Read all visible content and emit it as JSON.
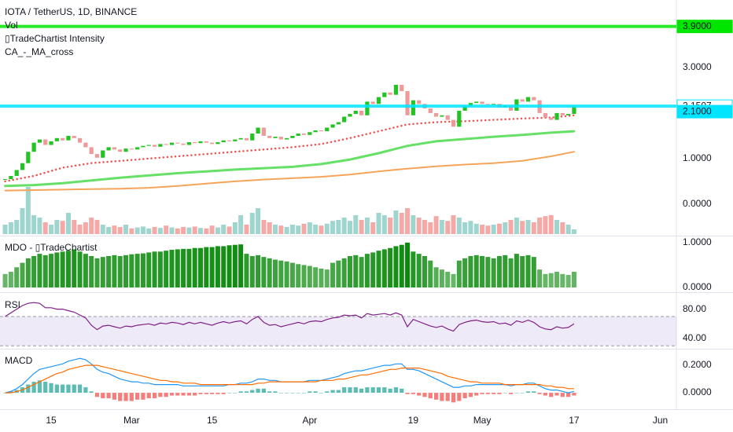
{
  "chart_data": [
    {
      "type": "candlestick",
      "title": "IOTA / TetherUS, 1D, BINANCE",
      "legend": [
        "Vol",
        "▯TradeChartist Intensity",
        "CA_-_MA_cross"
      ],
      "up_color": "#22c322",
      "down_color": "#ef9a9a",
      "closes": [
        0.55,
        0.62,
        0.75,
        0.9,
        1.15,
        1.35,
        1.42,
        1.3,
        1.38,
        1.45,
        1.4,
        1.5,
        1.45,
        1.35,
        1.25,
        1.1,
        1.02,
        1.18,
        1.25,
        1.2,
        1.15,
        1.22,
        1.2,
        1.25,
        1.28,
        1.3,
        1.26,
        1.32,
        1.3,
        1.35,
        1.33,
        1.3,
        1.36,
        1.34,
        1.38,
        1.35,
        1.32,
        1.36,
        1.4,
        1.38,
        1.42,
        1.45,
        1.4,
        1.55,
        1.68,
        1.5,
        1.45,
        1.48,
        1.42,
        1.45,
        1.5,
        1.55,
        1.52,
        1.58,
        1.62,
        1.6,
        1.68,
        1.75,
        1.8,
        1.92,
        1.98,
        2.05,
        1.95,
        2.25,
        2.2,
        2.35,
        2.45,
        2.4,
        2.62,
        2.48,
        1.95,
        2.28,
        2.2,
        2.1,
        2.0,
        1.92,
        1.95,
        1.85,
        1.7,
        2.05,
        2.15,
        2.22,
        2.25,
        2.2,
        2.18,
        2.2,
        2.12,
        2.16,
        2.05,
        2.3,
        2.25,
        2.35,
        2.28,
        2.0,
        1.9,
        1.85,
        2.0,
        1.95,
        1.98,
        2.15
      ],
      "lines": [
        {
          "color": "#66e066",
          "width": 3,
          "x": [
            0,
            5,
            10,
            15,
            20,
            25,
            30,
            35,
            40,
            45,
            50,
            55,
            60,
            65,
            70,
            75,
            80,
            85,
            90,
            95,
            99
          ],
          "values": [
            0.4,
            0.42,
            0.46,
            0.52,
            0.58,
            0.63,
            0.68,
            0.72,
            0.76,
            0.79,
            0.82,
            0.88,
            0.98,
            1.12,
            1.28,
            1.38,
            1.43,
            1.48,
            1.52,
            1.57,
            1.6
          ]
        },
        {
          "color": "#f5a55a",
          "width": 2,
          "x": [
            0,
            5,
            10,
            15,
            20,
            25,
            30,
            35,
            40,
            45,
            50,
            55,
            60,
            65,
            70,
            75,
            80,
            85,
            90,
            95,
            99
          ],
          "values": [
            0.3,
            0.31,
            0.32,
            0.33,
            0.34,
            0.36,
            0.4,
            0.45,
            0.5,
            0.54,
            0.57,
            0.6,
            0.65,
            0.72,
            0.78,
            0.83,
            0.87,
            0.9,
            0.95,
            1.05,
            1.15
          ]
        },
        {
          "color": "#ef5350",
          "width": 2.5,
          "dotted": true,
          "x": [
            0,
            5,
            10,
            15,
            20,
            25,
            30,
            35,
            40,
            45,
            50,
            55,
            60,
            65,
            70,
            75,
            80,
            85,
            90,
            95,
            99
          ],
          "values": [
            0.5,
            0.62,
            0.8,
            0.9,
            0.95,
            1.0,
            1.05,
            1.1,
            1.15,
            1.2,
            1.25,
            1.32,
            1.45,
            1.6,
            1.75,
            1.8,
            1.82,
            1.85,
            1.88,
            1.9,
            1.95
          ]
        }
      ],
      "levels": [
        {
          "value": 3.9,
          "label": "3.9000",
          "color": "#00e600",
          "line": true
        },
        {
          "value": 2.1507,
          "color": "#00e5ff",
          "line": true
        },
        {
          "value": 2.1,
          "label": "2.1000",
          "color": "#00e5ff",
          "line": false
        }
      ],
      "ylim": [
        -0.69,
        4.48
      ],
      "yticks": [
        {
          "value": 0,
          "label": "0.0000"
        },
        {
          "value": 1,
          "label": "1.0000"
        },
        {
          "value": 3,
          "label": "3.0000"
        }
      ]
    },
    {
      "type": "bar",
      "role": "volume",
      "up_color": "#9fd5cf",
      "down_color": "#f5a9a7",
      "ylim": [
        0,
        100
      ],
      "values": [
        20,
        25,
        30,
        55,
        100,
        40,
        35,
        25,
        20,
        30,
        28,
        45,
        30,
        20,
        25,
        35,
        30,
        20,
        15,
        18,
        15,
        20,
        12,
        14,
        16,
        12,
        15,
        13,
        18,
        14,
        12,
        15,
        14,
        16,
        13,
        12,
        18,
        14,
        20,
        16,
        25,
        40,
        20,
        45,
        55,
        30,
        25,
        20,
        18,
        15,
        20,
        18,
        22,
        25,
        20,
        18,
        22,
        28,
        30,
        35,
        28,
        40,
        30,
        35,
        25,
        45,
        40,
        35,
        50,
        45,
        55,
        40,
        35,
        30,
        25,
        38,
        30,
        28,
        40,
        35,
        25,
        28,
        22,
        20,
        18,
        20,
        22,
        25,
        30,
        35,
        28,
        30,
        25,
        35,
        38,
        40,
        30,
        25,
        20,
        10
      ]
    },
    {
      "type": "bar",
      "title": "MDO - ▯TradeChartist",
      "color": "#0a8a0a",
      "ylim": [
        -0.07,
        1.12
      ],
      "yticks": [
        {
          "value": 1,
          "label": "1.0000"
        },
        {
          "value": 0,
          "label": "0.0000"
        }
      ],
      "values": [
        0.3,
        0.35,
        0.45,
        0.55,
        0.65,
        0.7,
        0.75,
        0.72,
        0.75,
        0.78,
        0.8,
        0.82,
        0.85,
        0.8,
        0.75,
        0.7,
        0.65,
        0.68,
        0.7,
        0.72,
        0.7,
        0.72,
        0.74,
        0.75,
        0.76,
        0.78,
        0.8,
        0.8,
        0.82,
        0.84,
        0.85,
        0.86,
        0.86,
        0.88,
        0.88,
        0.9,
        0.9,
        0.92,
        0.92,
        0.94,
        0.95,
        0.96,
        0.75,
        0.7,
        0.72,
        0.68,
        0.65,
        0.62,
        0.6,
        0.58,
        0.55,
        0.52,
        0.5,
        0.48,
        0.45,
        0.42,
        0.4,
        0.55,
        0.6,
        0.65,
        0.7,
        0.72,
        0.68,
        0.75,
        0.78,
        0.82,
        0.85,
        0.88,
        0.92,
        0.95,
        1.0,
        0.8,
        0.75,
        0.7,
        0.6,
        0.45,
        0.4,
        0.35,
        0.3,
        0.6,
        0.65,
        0.7,
        0.72,
        0.7,
        0.68,
        0.65,
        0.7,
        0.72,
        0.65,
        0.75,
        0.7,
        0.72,
        0.68,
        0.4,
        0.3,
        0.32,
        0.35,
        0.3,
        0.28,
        0.35
      ]
    },
    {
      "type": "line",
      "title": "RSI",
      "ylim": [
        27,
        100
      ],
      "band": [
        30,
        70
      ],
      "band_color": "#9575cd",
      "yticks": [
        {
          "value": 80,
          "label": "80.00"
        },
        {
          "value": 40,
          "label": "40.00"
        }
      ],
      "series": [
        {
          "color": "#7e1f86",
          "values": [
            70,
            75,
            80,
            85,
            88,
            89,
            88,
            82,
            82,
            80,
            80,
            78,
            76,
            72,
            68,
            58,
            52,
            57,
            58,
            56,
            54,
            57,
            56,
            58,
            59,
            60,
            58,
            61,
            60,
            62,
            61,
            59,
            62,
            60,
            62,
            60,
            58,
            61,
            63,
            61,
            63,
            64,
            60,
            66,
            70,
            62,
            58,
            59,
            56,
            58,
            60,
            62,
            60,
            63,
            64,
            63,
            66,
            68,
            69,
            72,
            71,
            72,
            68,
            74,
            72,
            73,
            74,
            72,
            75,
            72,
            56,
            66,
            63,
            60,
            57,
            55,
            57,
            53,
            50,
            59,
            62,
            64,
            65,
            63,
            62,
            63,
            60,
            61,
            58,
            64,
            62,
            65,
            62,
            56,
            53,
            52,
            56,
            54,
            55,
            60
          ]
        }
      ]
    },
    {
      "type": "line",
      "title": "MACD",
      "ylim": [
        -0.114,
        0.309
      ],
      "yticks": [
        {
          "value": 0.2,
          "label": "0.2000"
        },
        {
          "value": 0,
          "label": "0.0000"
        }
      ],
      "series": [
        {
          "color": "#2196f3",
          "values": [
            0,
            0.01,
            0.03,
            0.06,
            0.1,
            0.14,
            0.17,
            0.18,
            0.19,
            0.2,
            0.21,
            0.23,
            0.24,
            0.25,
            0.24,
            0.21,
            0.17,
            0.15,
            0.14,
            0.12,
            0.1,
            0.09,
            0.08,
            0.08,
            0.07,
            0.07,
            0.06,
            0.06,
            0.06,
            0.06,
            0.06,
            0.05,
            0.05,
            0.05,
            0.05,
            0.05,
            0.05,
            0.05,
            0.05,
            0.06,
            0.06,
            0.07,
            0.07,
            0.08,
            0.1,
            0.1,
            0.09,
            0.09,
            0.08,
            0.08,
            0.08,
            0.08,
            0.08,
            0.09,
            0.09,
            0.09,
            0.1,
            0.11,
            0.12,
            0.14,
            0.15,
            0.16,
            0.16,
            0.17,
            0.18,
            0.19,
            0.2,
            0.2,
            0.21,
            0.21,
            0.17,
            0.17,
            0.16,
            0.14,
            0.12,
            0.1,
            0.08,
            0.06,
            0.04,
            0.04,
            0.05,
            0.05,
            0.06,
            0.06,
            0.06,
            0.06,
            0.06,
            0.06,
            0.05,
            0.06,
            0.06,
            0.07,
            0.07,
            0.05,
            0.03,
            0.02,
            0.02,
            0.01,
            0,
            0.01
          ]
        },
        {
          "color": "#ff6d00",
          "values": [
            0,
            0,
            0.01,
            0.02,
            0.04,
            0.06,
            0.08,
            0.1,
            0.12,
            0.14,
            0.15,
            0.17,
            0.18,
            0.19,
            0.2,
            0.2,
            0.2,
            0.19,
            0.18,
            0.17,
            0.16,
            0.15,
            0.14,
            0.13,
            0.12,
            0.11,
            0.1,
            0.09,
            0.09,
            0.08,
            0.08,
            0.07,
            0.07,
            0.07,
            0.06,
            0.06,
            0.06,
            0.06,
            0.06,
            0.06,
            0.06,
            0.06,
            0.06,
            0.06,
            0.07,
            0.07,
            0.08,
            0.08,
            0.08,
            0.08,
            0.08,
            0.08,
            0.08,
            0.08,
            0.08,
            0.09,
            0.09,
            0.09,
            0.1,
            0.1,
            0.11,
            0.12,
            0.13,
            0.13,
            0.14,
            0.15,
            0.16,
            0.17,
            0.17,
            0.18,
            0.18,
            0.18,
            0.18,
            0.17,
            0.16,
            0.15,
            0.14,
            0.12,
            0.11,
            0.1,
            0.09,
            0.08,
            0.08,
            0.07,
            0.07,
            0.07,
            0.07,
            0.06,
            0.06,
            0.06,
            0.06,
            0.06,
            0.06,
            0.06,
            0.05,
            0.05,
            0.04,
            0.04,
            0.03,
            0.03
          ]
        }
      ],
      "histogram": {
        "up_color": "#26a69a",
        "down_color": "#ef5350",
        "values": [
          0,
          0.01,
          0.02,
          0.04,
          0.06,
          0.08,
          0.09,
          0.08,
          0.07,
          0.06,
          0.06,
          0.06,
          0.06,
          0.06,
          0.04,
          0.01,
          -0.03,
          -0.04,
          -0.04,
          -0.05,
          -0.06,
          -0.06,
          -0.06,
          -0.05,
          -0.05,
          -0.04,
          -0.04,
          -0.03,
          -0.03,
          -0.02,
          -0.02,
          -0.02,
          -0.02,
          -0.02,
          -0.01,
          -0.01,
          -0.01,
          -0.01,
          -0.01,
          0,
          0,
          0.01,
          0.01,
          0.02,
          0.03,
          0.03,
          0.01,
          0.01,
          0,
          0,
          0,
          0,
          0,
          0.01,
          0.01,
          0,
          0.01,
          0.02,
          0.02,
          0.04,
          0.04,
          0.04,
          0.03,
          0.04,
          0.04,
          0.04,
          0.04,
          0.03,
          0.04,
          0.03,
          -0.01,
          -0.01,
          -0.02,
          -0.03,
          -0.04,
          -0.05,
          -0.06,
          -0.06,
          -0.07,
          -0.06,
          -0.04,
          -0.03,
          -0.02,
          -0.01,
          -0.01,
          -0.01,
          -0.01,
          0,
          -0.01,
          0,
          0,
          0.01,
          0.01,
          -0.01,
          -0.02,
          -0.03,
          -0.02,
          -0.03,
          -0.03,
          -0.02
        ]
      },
      "xlim": [
        -0.9,
        116.8
      ],
      "xticks": [
        {
          "value": 8,
          "label": "15"
        },
        {
          "value": 22,
          "label": "Mar"
        },
        {
          "value": 36,
          "label": "15"
        },
        {
          "value": 53,
          "label": "Apr"
        },
        {
          "value": 71,
          "label": "19"
        },
        {
          "value": 83,
          "label": "May"
        },
        {
          "value": 99,
          "label": "17"
        },
        {
          "value": 114,
          "label": "Jun"
        }
      ]
    }
  ]
}
